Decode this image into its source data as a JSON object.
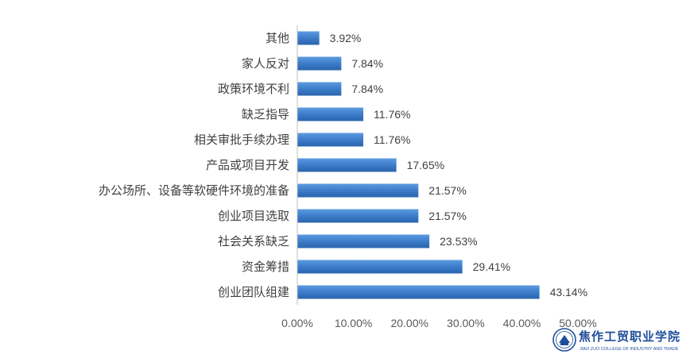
{
  "chart_data": {
    "type": "bar",
    "orientation": "horizontal",
    "categories": [
      "其他",
      "家人反对",
      "政策环境不利",
      "缺乏指导",
      "相关审批手续办理",
      "产品或项目开发",
      "办公场所、设备等软硬件环境的准备",
      "创业项目选取",
      "社会关系缺乏",
      "资金筹措",
      "创业团队组建"
    ],
    "values": [
      3.92,
      7.84,
      7.84,
      11.76,
      11.76,
      17.65,
      21.57,
      21.57,
      23.53,
      29.41,
      43.14
    ],
    "value_labels": [
      "3.92%",
      "7.84%",
      "7.84%",
      "11.76%",
      "11.76%",
      "17.65%",
      "21.57%",
      "21.57%",
      "23.53%",
      "29.41%",
      "43.14%"
    ],
    "xlim": [
      0,
      50
    ],
    "x_ticks": [
      "0.00%",
      "10.00%",
      "20.00%",
      "30.00%",
      "40.00%",
      "50.00%"
    ],
    "grid": false,
    "bar_color": "#3d7cc9"
  },
  "logo": {
    "name_cn": "焦作工贸职业学院",
    "name_en": "JIAO ZUO COLLEGE OF INDUSTRY AND TRADE"
  }
}
